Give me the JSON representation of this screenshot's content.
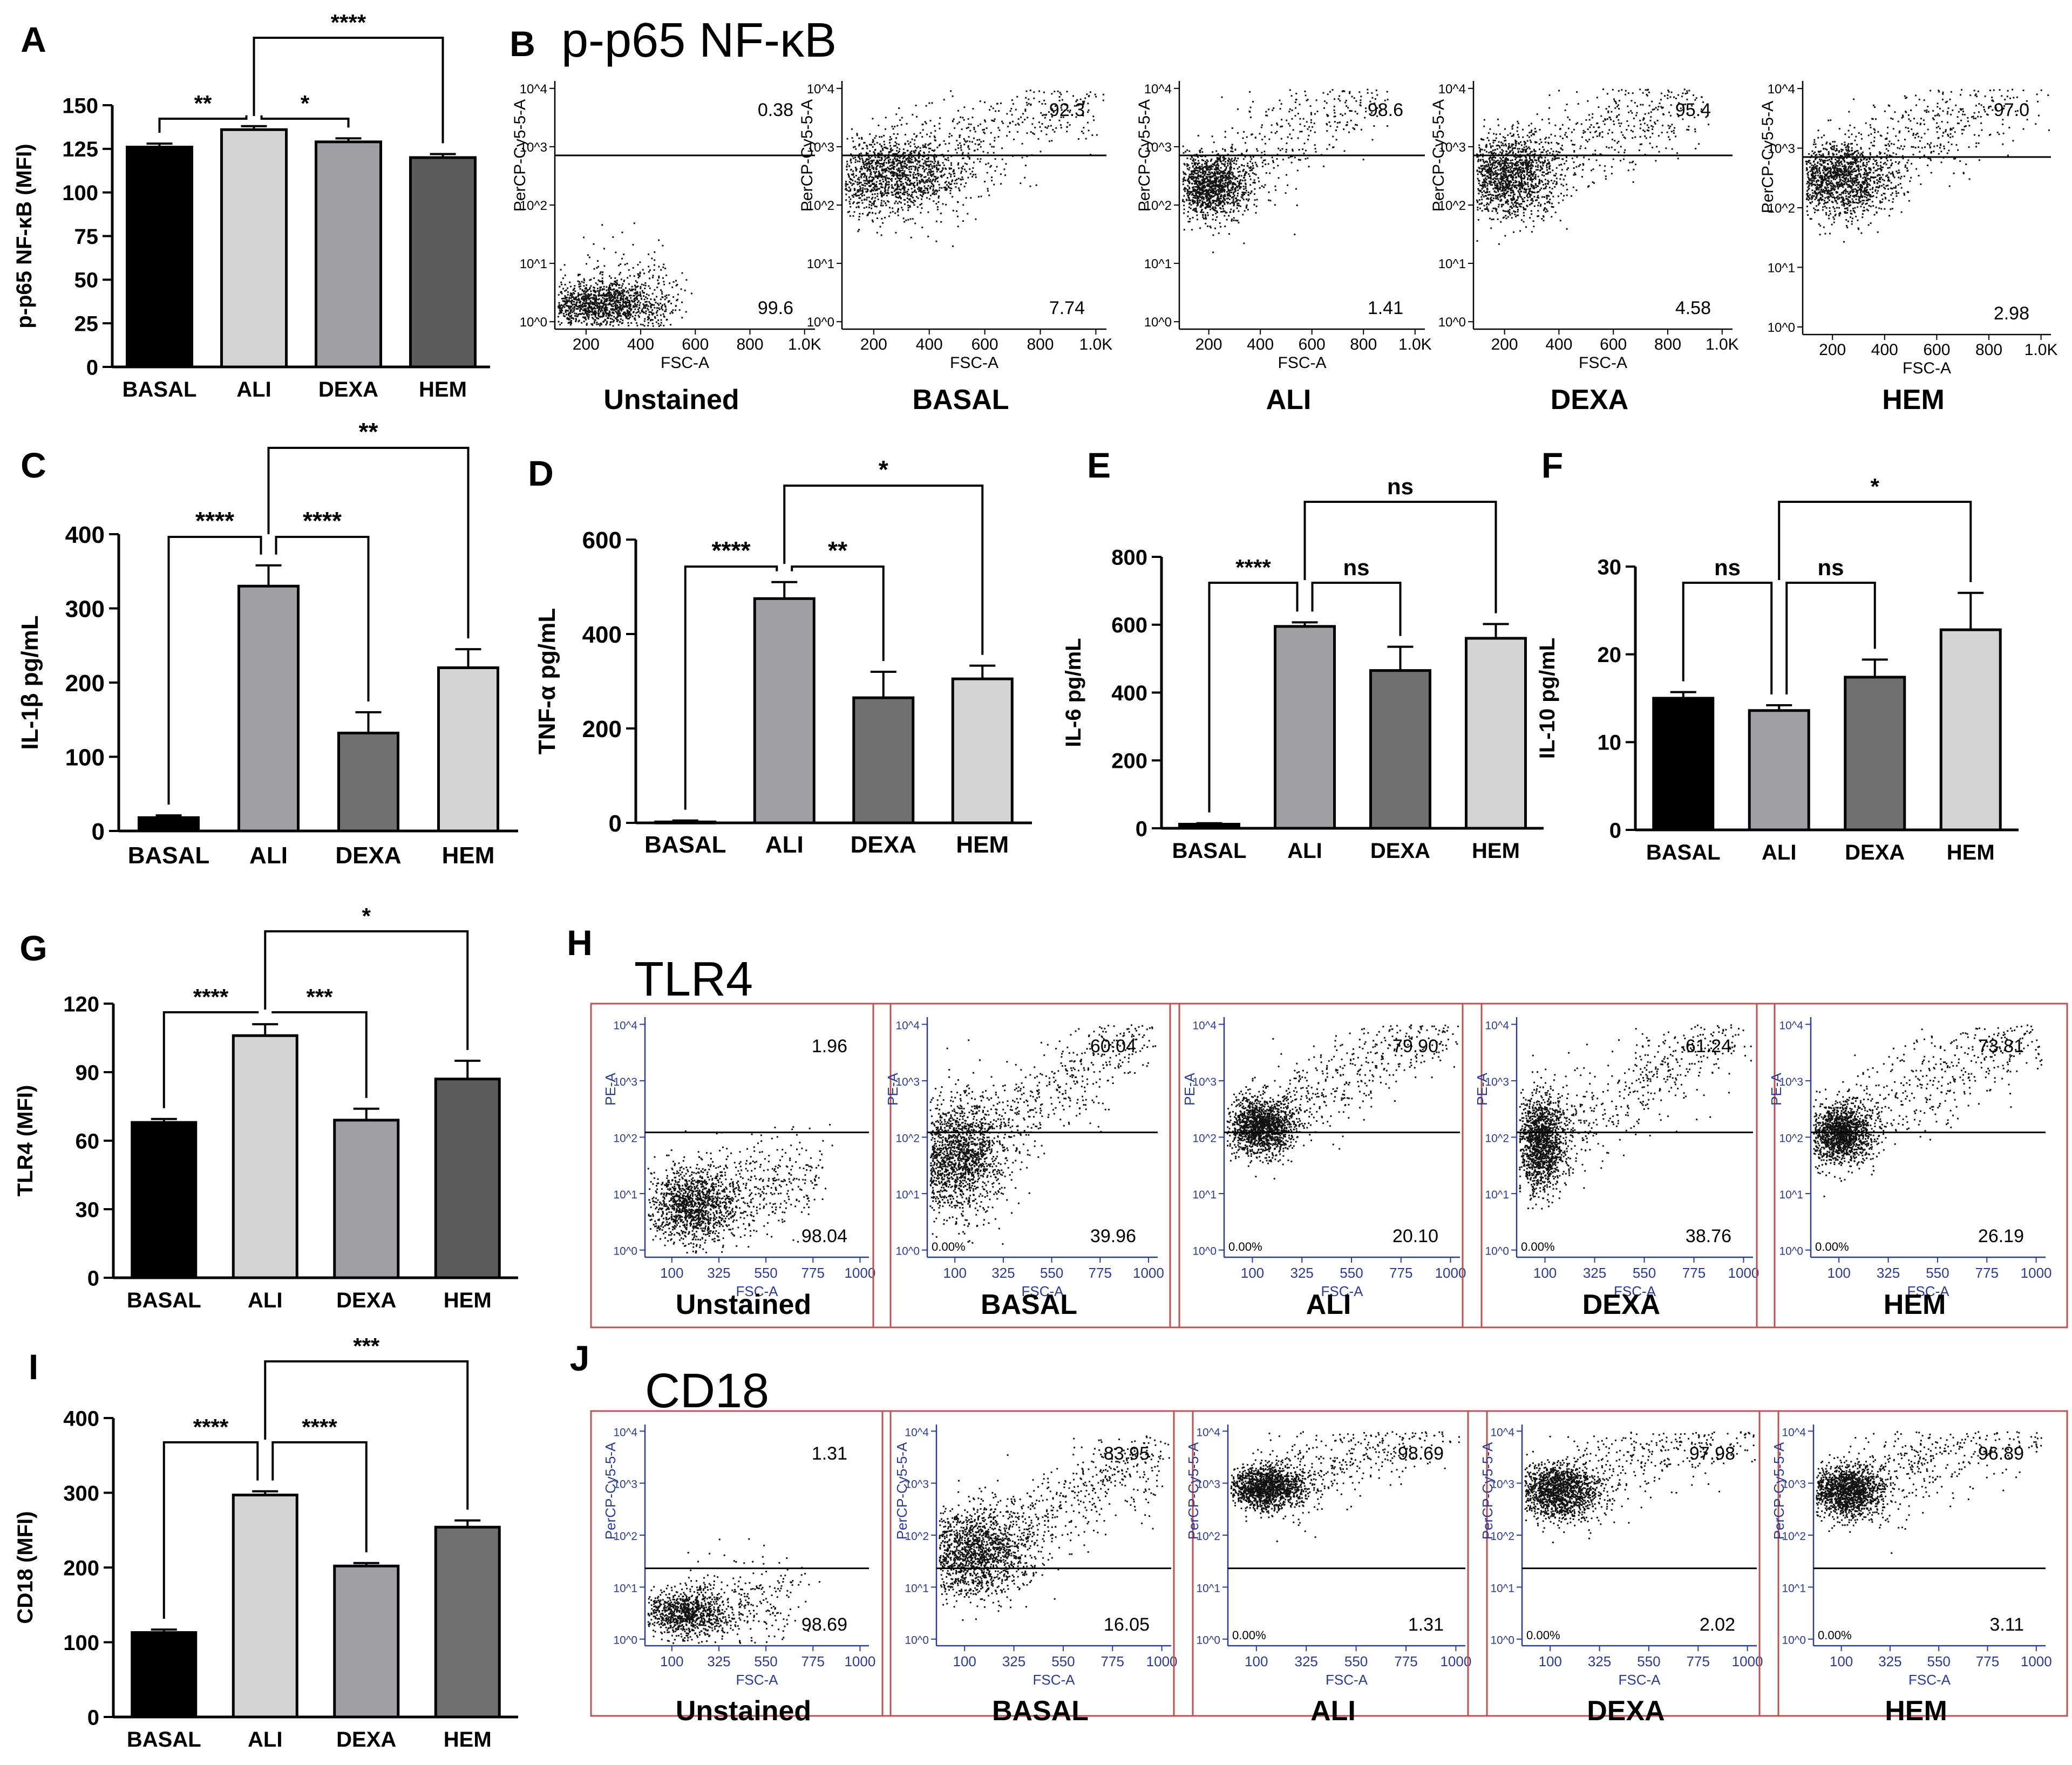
{
  "figure": {
    "panel_letters": [
      "A",
      "B",
      "C",
      "D",
      "E",
      "F",
      "G",
      "H",
      "I",
      "J"
    ],
    "flow_titles": {
      "B": "p-p65 NF-κB",
      "H": "TLR4",
      "J": "CD18"
    }
  },
  "chart_data": [
    {
      "id": "A",
      "type": "bar",
      "title": "",
      "categories": [
        "BASAL",
        "ALI",
        "DEXA",
        "HEM"
      ],
      "values": [
        126,
        136,
        129,
        120
      ],
      "errors": [
        2,
        2,
        2,
        2
      ],
      "colors": [
        "#000000",
        "#d4d4d4",
        "#a0a0a4",
        "#5c5c5c"
      ],
      "ylabel": "p-p65 NF-κB (MFI)",
      "ylim": [
        0,
        150
      ],
      "yticks": [
        0,
        25,
        50,
        75,
        100,
        125,
        150
      ],
      "significance": [
        {
          "from": 0,
          "to": 1,
          "label": "**"
        },
        {
          "from": 1,
          "to": 2,
          "label": "*"
        },
        {
          "from": 1,
          "to": 3,
          "label": "****"
        }
      ]
    },
    {
      "id": "C",
      "type": "bar",
      "title": "",
      "categories": [
        "BASAL",
        "ALI",
        "DEXA",
        "HEM"
      ],
      "values": [
        18,
        330,
        132,
        220
      ],
      "errors": [
        3,
        28,
        28,
        25
      ],
      "colors": [
        "#000000",
        "#a0a0a4",
        "#707070",
        "#d4d4d4"
      ],
      "ylabel": "IL-1β pg/mL",
      "ylim": [
        0,
        400
      ],
      "yticks": [
        0,
        100,
        200,
        300,
        400
      ],
      "significance": [
        {
          "from": 0,
          "to": 1,
          "label": "****"
        },
        {
          "from": 1,
          "to": 2,
          "label": "****"
        },
        {
          "from": 1,
          "to": 3,
          "label": "**"
        }
      ]
    },
    {
      "id": "D",
      "type": "bar",
      "title": "",
      "categories": [
        "BASAL",
        "ALI",
        "DEXA",
        "HEM"
      ],
      "values": [
        2,
        475,
        265,
        305
      ],
      "errors": [
        3,
        35,
        55,
        28
      ],
      "colors": [
        "#000000",
        "#a0a0a4",
        "#707070",
        "#d4d4d4"
      ],
      "ylabel": "TNF-α pg/mL",
      "ylim": [
        0,
        600
      ],
      "yticks": [
        0,
        200,
        400,
        600
      ],
      "significance": [
        {
          "from": 0,
          "to": 1,
          "label": "****"
        },
        {
          "from": 1,
          "to": 2,
          "label": "**"
        },
        {
          "from": 1,
          "to": 3,
          "label": "*"
        }
      ]
    },
    {
      "id": "E",
      "type": "bar",
      "title": "",
      "categories": [
        "BASAL",
        "ALI",
        "DEXA",
        "HEM"
      ],
      "values": [
        12,
        595,
        465,
        560
      ],
      "errors": [
        3,
        12,
        70,
        42
      ],
      "colors": [
        "#000000",
        "#a0a0a4",
        "#707070",
        "#d4d4d4"
      ],
      "ylabel": "IL-6 pg/mL",
      "ylim": [
        0,
        800
      ],
      "yticks": [
        0,
        200,
        400,
        600,
        800
      ],
      "significance": [
        {
          "from": 0,
          "to": 1,
          "label": "****"
        },
        {
          "from": 1,
          "to": 2,
          "label": "ns"
        },
        {
          "from": 1,
          "to": 3,
          "label": "ns"
        }
      ]
    },
    {
      "id": "F",
      "type": "bar",
      "title": "",
      "categories": [
        "BASAL",
        "ALI",
        "DEXA",
        "HEM"
      ],
      "values": [
        15,
        13.6,
        17.4,
        22.8
      ],
      "errors": [
        0.7,
        0.6,
        2.0,
        4.2
      ],
      "colors": [
        "#000000",
        "#a0a0a4",
        "#707070",
        "#d4d4d4"
      ],
      "ylabel": "IL-10 pg/mL",
      "ylim": [
        0,
        30
      ],
      "yticks": [
        0,
        10,
        20,
        30
      ],
      "significance": [
        {
          "from": 0,
          "to": 1,
          "label": "ns"
        },
        {
          "from": 1,
          "to": 2,
          "label": "ns"
        },
        {
          "from": 1,
          "to": 3,
          "label": "*"
        }
      ]
    },
    {
      "id": "G",
      "type": "bar",
      "title": "",
      "categories": [
        "BASAL",
        "ALI",
        "DEXA",
        "HEM"
      ],
      "values": [
        68,
        106,
        69,
        87
      ],
      "errors": [
        1.5,
        5,
        5,
        8
      ],
      "colors": [
        "#000000",
        "#d4d4d4",
        "#a0a0a4",
        "#5c5c5c"
      ],
      "ylabel": "TLR4 (MFI)",
      "ylim": [
        0,
        120
      ],
      "yticks": [
        0,
        30,
        60,
        90,
        120
      ],
      "significance": [
        {
          "from": 0,
          "to": 1,
          "label": "****"
        },
        {
          "from": 1,
          "to": 2,
          "label": "***"
        },
        {
          "from": 1,
          "to": 3,
          "label": "*"
        }
      ]
    },
    {
      "id": "I",
      "type": "bar",
      "title": "",
      "categories": [
        "BASAL",
        "ALI",
        "DEXA",
        "HEM"
      ],
      "values": [
        113,
        297,
        202,
        254
      ],
      "errors": [
        4,
        5,
        4,
        9
      ],
      "colors": [
        "#000000",
        "#d4d4d4",
        "#a0a0a4",
        "#707070"
      ],
      "ylabel": "CD18 (MFI)",
      "ylim": [
        0,
        400
      ],
      "yticks": [
        0,
        100,
        200,
        300,
        400
      ],
      "significance": [
        {
          "from": 0,
          "to": 1,
          "label": "****"
        },
        {
          "from": 1,
          "to": 2,
          "label": "****"
        },
        {
          "from": 1,
          "to": 3,
          "label": "***"
        }
      ]
    },
    {
      "id": "B",
      "type": "scatter",
      "title": "p-p65 NF-κB",
      "xlabel": "FSC-A",
      "ylabel": "PerCP-Cy5-5-A",
      "x_ticks": [
        "200",
        "400",
        "600",
        "800",
        "1.0K"
      ],
      "y_ticks": [
        "10^0",
        "10^1",
        "10^2",
        "10^3",
        "10^4"
      ],
      "plots": [
        {
          "name": "Unstained",
          "upper_pct": "0.38",
          "lower_pct": "99.6"
        },
        {
          "name": "BASAL",
          "upper_pct": "92.3",
          "lower_pct": "7.74"
        },
        {
          "name": "ALI",
          "upper_pct": "98.6",
          "lower_pct": "1.41"
        },
        {
          "name": "DEXA",
          "upper_pct": "95.4",
          "lower_pct": "4.58"
        },
        {
          "name": "HEM",
          "upper_pct": "97.0",
          "lower_pct": "2.98"
        }
      ]
    },
    {
      "id": "H",
      "type": "scatter",
      "title": "TLR4",
      "xlabel": "FSC-A",
      "ylabel": "PE-A",
      "x_ticks": [
        "100",
        "325",
        "550",
        "775",
        "1000"
      ],
      "y_ticks": [
        "10^0",
        "10^1",
        "10^2",
        "10^3",
        "10^4"
      ],
      "plots": [
        {
          "name": "Unstained",
          "upper_pct": "1.96",
          "lower_pct": "98.04",
          "corner_pct": ""
        },
        {
          "name": "BASAL",
          "upper_pct": "60.04",
          "lower_pct": "39.96",
          "corner_pct": "0.00%"
        },
        {
          "name": "ALI",
          "upper_pct": "79.90",
          "lower_pct": "20.10",
          "corner_pct": "0.00%"
        },
        {
          "name": "DEXA",
          "upper_pct": "61.24",
          "lower_pct": "38.76",
          "corner_pct": "0.00%"
        },
        {
          "name": "HEM",
          "upper_pct": "73.81",
          "lower_pct": "26.19",
          "corner_pct": "0.00%"
        }
      ]
    },
    {
      "id": "J",
      "type": "scatter",
      "title": "CD18",
      "xlabel": "FSC-A",
      "ylabel": "PerCP-Cy5-5-A",
      "x_ticks": [
        "100",
        "325",
        "550",
        "775",
        "1000"
      ],
      "y_ticks": [
        "10^0",
        "10^1",
        "10^2",
        "10^3",
        "10^4"
      ],
      "plots": [
        {
          "name": "Unstained",
          "upper_pct": "1.31",
          "lower_pct": "98.69",
          "corner_pct": ""
        },
        {
          "name": "BASAL",
          "upper_pct": "83.95",
          "lower_pct": "16.05",
          "corner_pct": ""
        },
        {
          "name": "ALI",
          "upper_pct": "98.69",
          "lower_pct": "1.31",
          "corner_pct": "0.00%"
        },
        {
          "name": "DEXA",
          "upper_pct": "97.98",
          "lower_pct": "2.02",
          "corner_pct": "0.00%"
        },
        {
          "name": "HEM",
          "upper_pct": "96.89",
          "lower_pct": "3.11",
          "corner_pct": "0.00%"
        }
      ]
    }
  ]
}
